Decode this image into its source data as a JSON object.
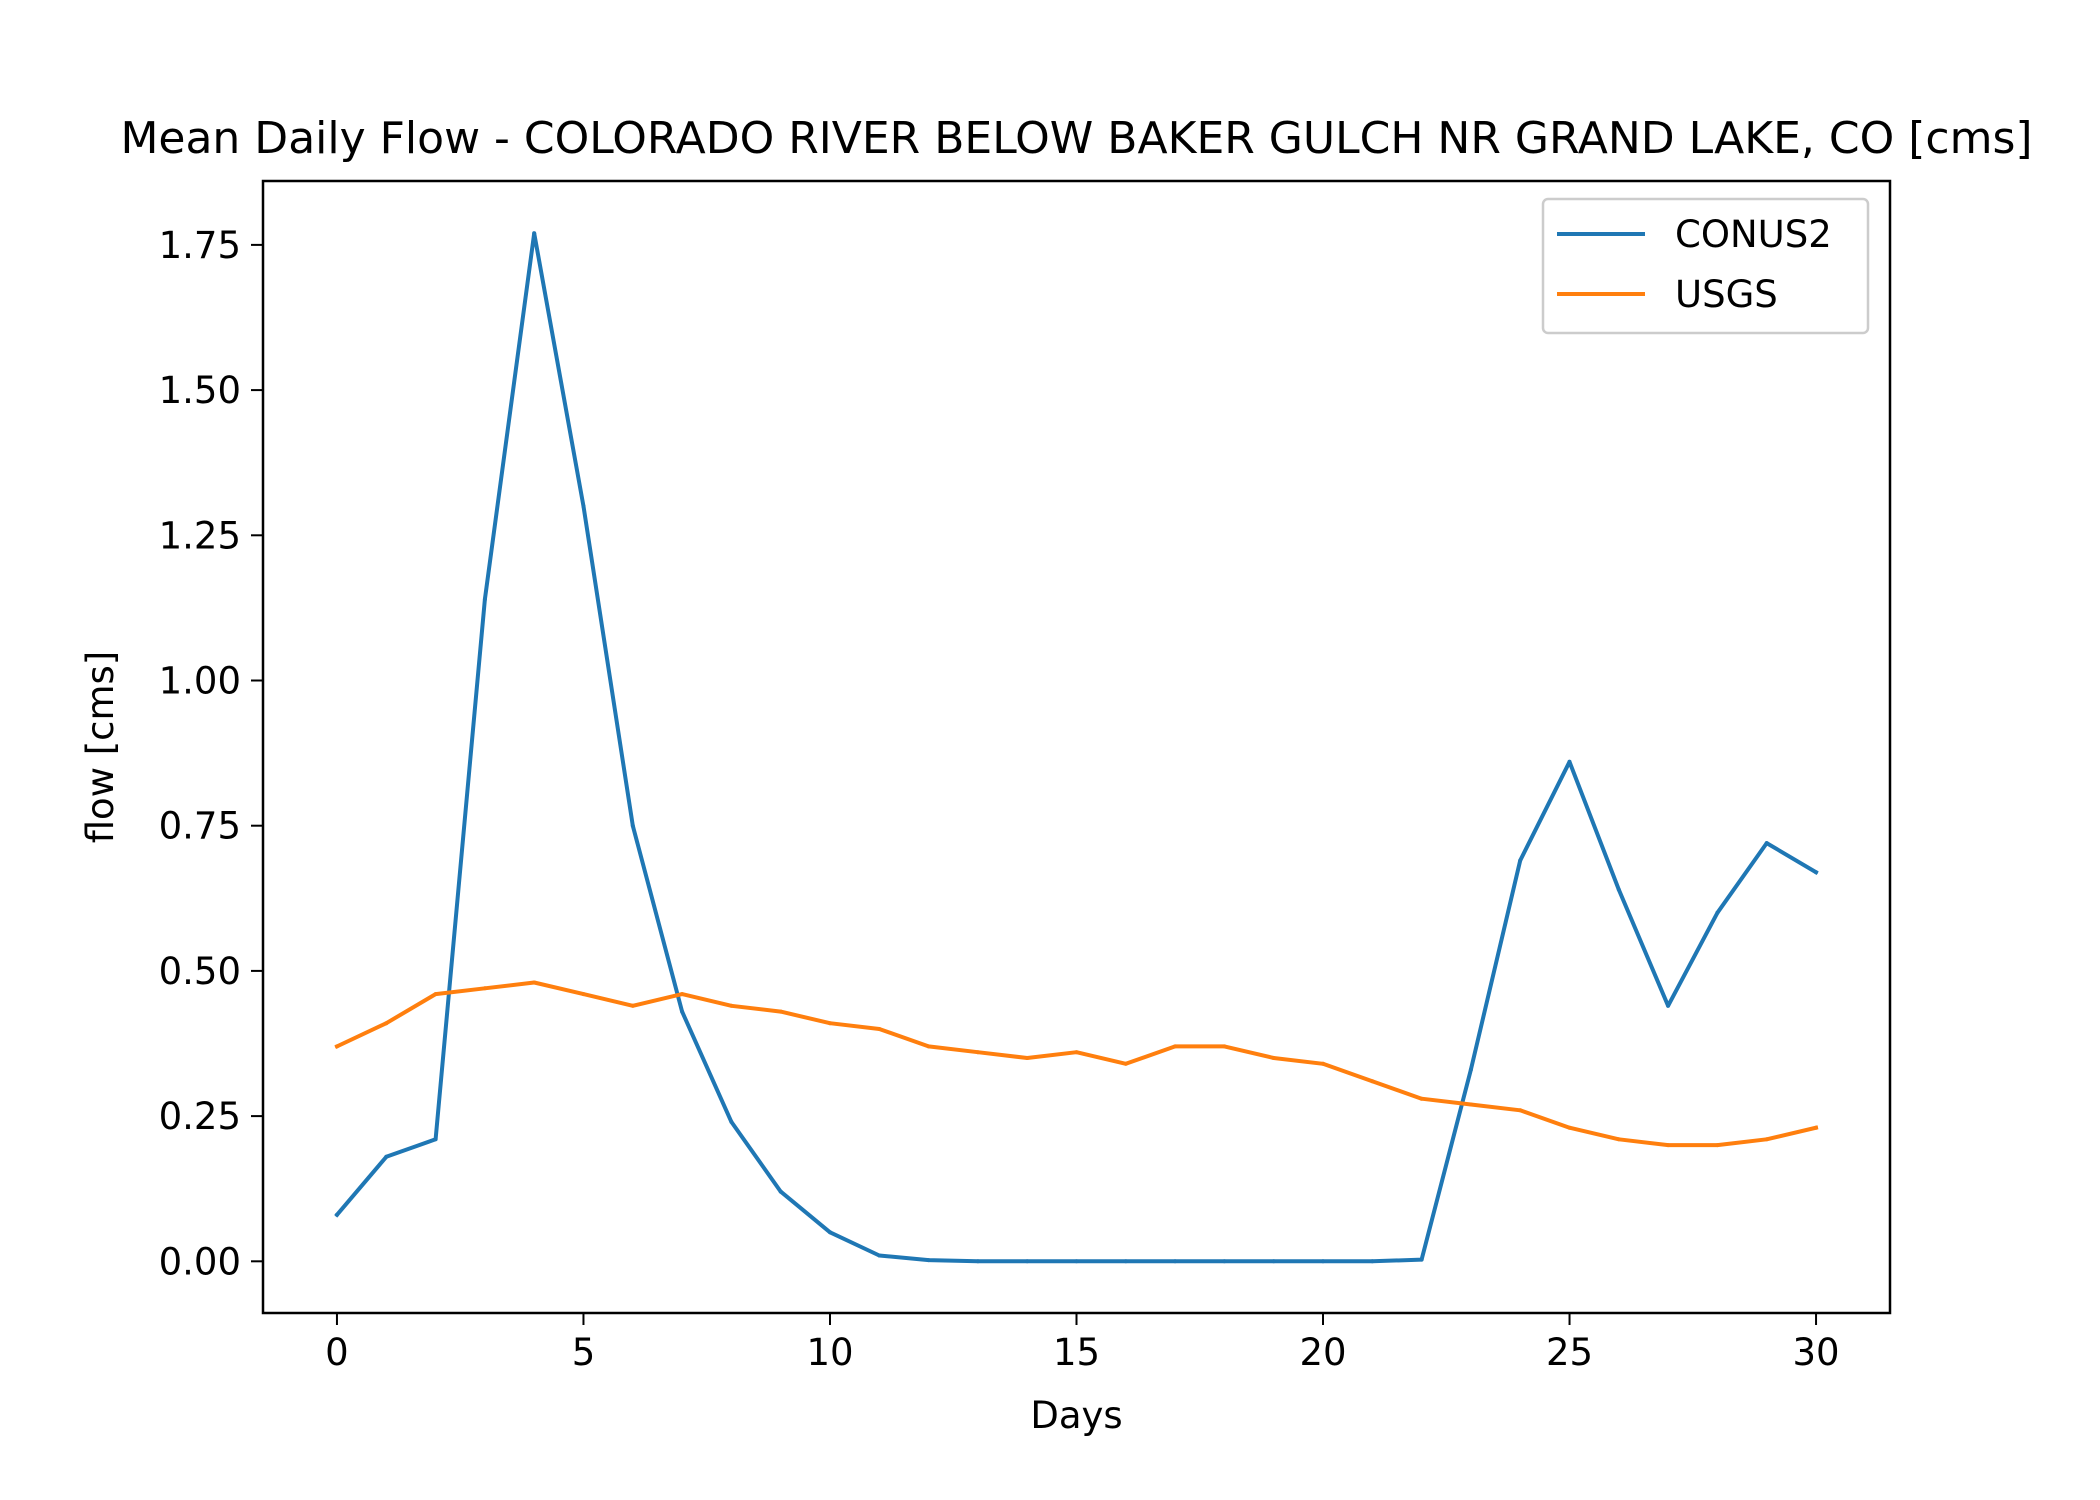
{
  "chart_data": {
    "type": "line",
    "title": "Mean Daily Flow - COLORADO RIVER BELOW BAKER GULCH NR GRAND LAKE, CO [cms]",
    "xlabel": "Days",
    "ylabel": "flow [cms]",
    "xlim": [
      -1.5,
      31.5
    ],
    "ylim": [
      -0.089,
      1.86
    ],
    "xticks": [
      0,
      5,
      10,
      15,
      20,
      25,
      30
    ],
    "yticks": [
      0.0,
      0.25,
      0.5,
      0.75,
      1.0,
      1.25,
      1.5,
      1.75
    ],
    "ytick_labels": [
      "0.00",
      "0.25",
      "0.50",
      "0.75",
      "1.00",
      "1.25",
      "1.50",
      "1.75"
    ],
    "grid": false,
    "legend_position": "top-right",
    "x": [
      0,
      1,
      2,
      3,
      4,
      5,
      6,
      7,
      8,
      9,
      10,
      11,
      12,
      13,
      14,
      15,
      16,
      17,
      18,
      19,
      20,
      21,
      22,
      23,
      24,
      25,
      26,
      27,
      28,
      29,
      30
    ],
    "series": [
      {
        "name": "CONUS2",
        "color": "#1f77b4",
        "values": [
          0.08,
          0.18,
          0.21,
          1.14,
          1.77,
          1.3,
          0.75,
          0.43,
          0.24,
          0.12,
          0.05,
          0.01,
          0.002,
          0.0,
          0.0,
          0.0,
          0.0,
          0.0,
          0.0,
          0.0,
          0.0,
          0.0,
          0.003,
          0.33,
          0.69,
          0.86,
          0.64,
          0.44,
          0.6,
          0.72,
          0.67
        ]
      },
      {
        "name": "USGS",
        "color": "#ff7f0e",
        "values": [
          0.37,
          0.41,
          0.46,
          0.47,
          0.48,
          0.46,
          0.44,
          0.46,
          0.44,
          0.43,
          0.41,
          0.4,
          0.37,
          0.36,
          0.35,
          0.36,
          0.34,
          0.37,
          0.37,
          0.35,
          0.34,
          0.31,
          0.28,
          0.27,
          0.26,
          0.23,
          0.21,
          0.2,
          0.2,
          0.21,
          0.23
        ]
      }
    ]
  }
}
